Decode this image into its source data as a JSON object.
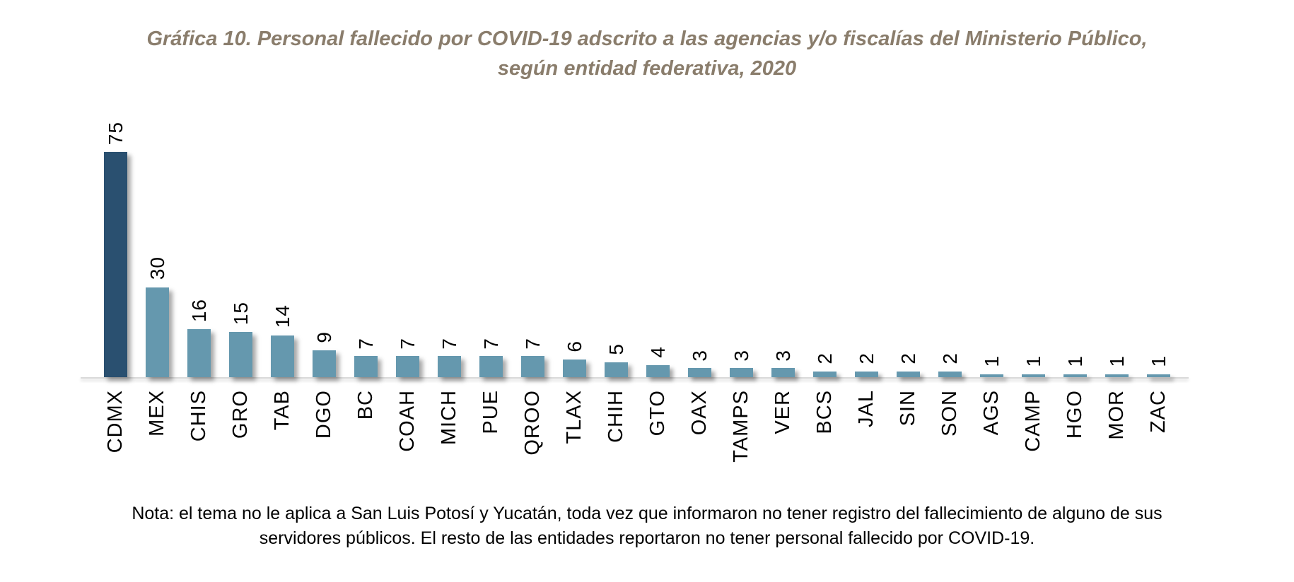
{
  "title": {
    "lines": [
      "Gráfica 10. Personal fallecido por COVID-19 adscrito a las agencias y/o fiscalías del Ministerio Público,",
      "según entidad federativa, 2020"
    ],
    "color": "#8a7d6c"
  },
  "chart_data": {
    "type": "bar",
    "title": "Gráfica 10. Personal fallecido por COVID-19 adscrito a las agencias y/o fiscalías del Ministerio Público, según entidad federativa, 2020",
    "categories": [
      "CDMX",
      "MEX",
      "CHIS",
      "GRO",
      "TAB",
      "DGO",
      "BC",
      "COAH",
      "MICH",
      "PUE",
      "QROO",
      "TLAX",
      "CHIH",
      "GTO",
      "OAX",
      "TAMPS",
      "VER",
      "BCS",
      "JAL",
      "SIN",
      "SON",
      "AGS",
      "CAMP",
      "HGO",
      "MOR",
      "ZAC"
    ],
    "values": [
      75,
      30,
      16,
      15,
      14,
      9,
      7,
      7,
      7,
      7,
      7,
      6,
      5,
      4,
      3,
      3,
      3,
      2,
      2,
      2,
      2,
      1,
      1,
      1,
      1,
      1
    ],
    "highlight_index": 0,
    "highlight_category": "CDMX",
    "value_labels_shown": true,
    "value_label_rotation": "vertical-bottom-to-top",
    "x_label_rotation": "vertical-bottom-to-top",
    "grid": false,
    "legend": false,
    "ylim": [
      0,
      80
    ],
    "xlabel": "",
    "ylabel": "",
    "colors": {
      "bar": "#6598ae",
      "highlight": "#2a5070",
      "axis_line": "#d9d9d9",
      "labels": "#000000"
    }
  },
  "note": {
    "lines": [
      "Nota: el tema no le aplica a San Luis Potosí y Yucatán, toda vez que informaron no tener registro del fallecimiento de alguno de sus",
      "servidores públicos. El resto de las entidades reportaron no tener personal fallecido por COVID-19."
    ]
  }
}
